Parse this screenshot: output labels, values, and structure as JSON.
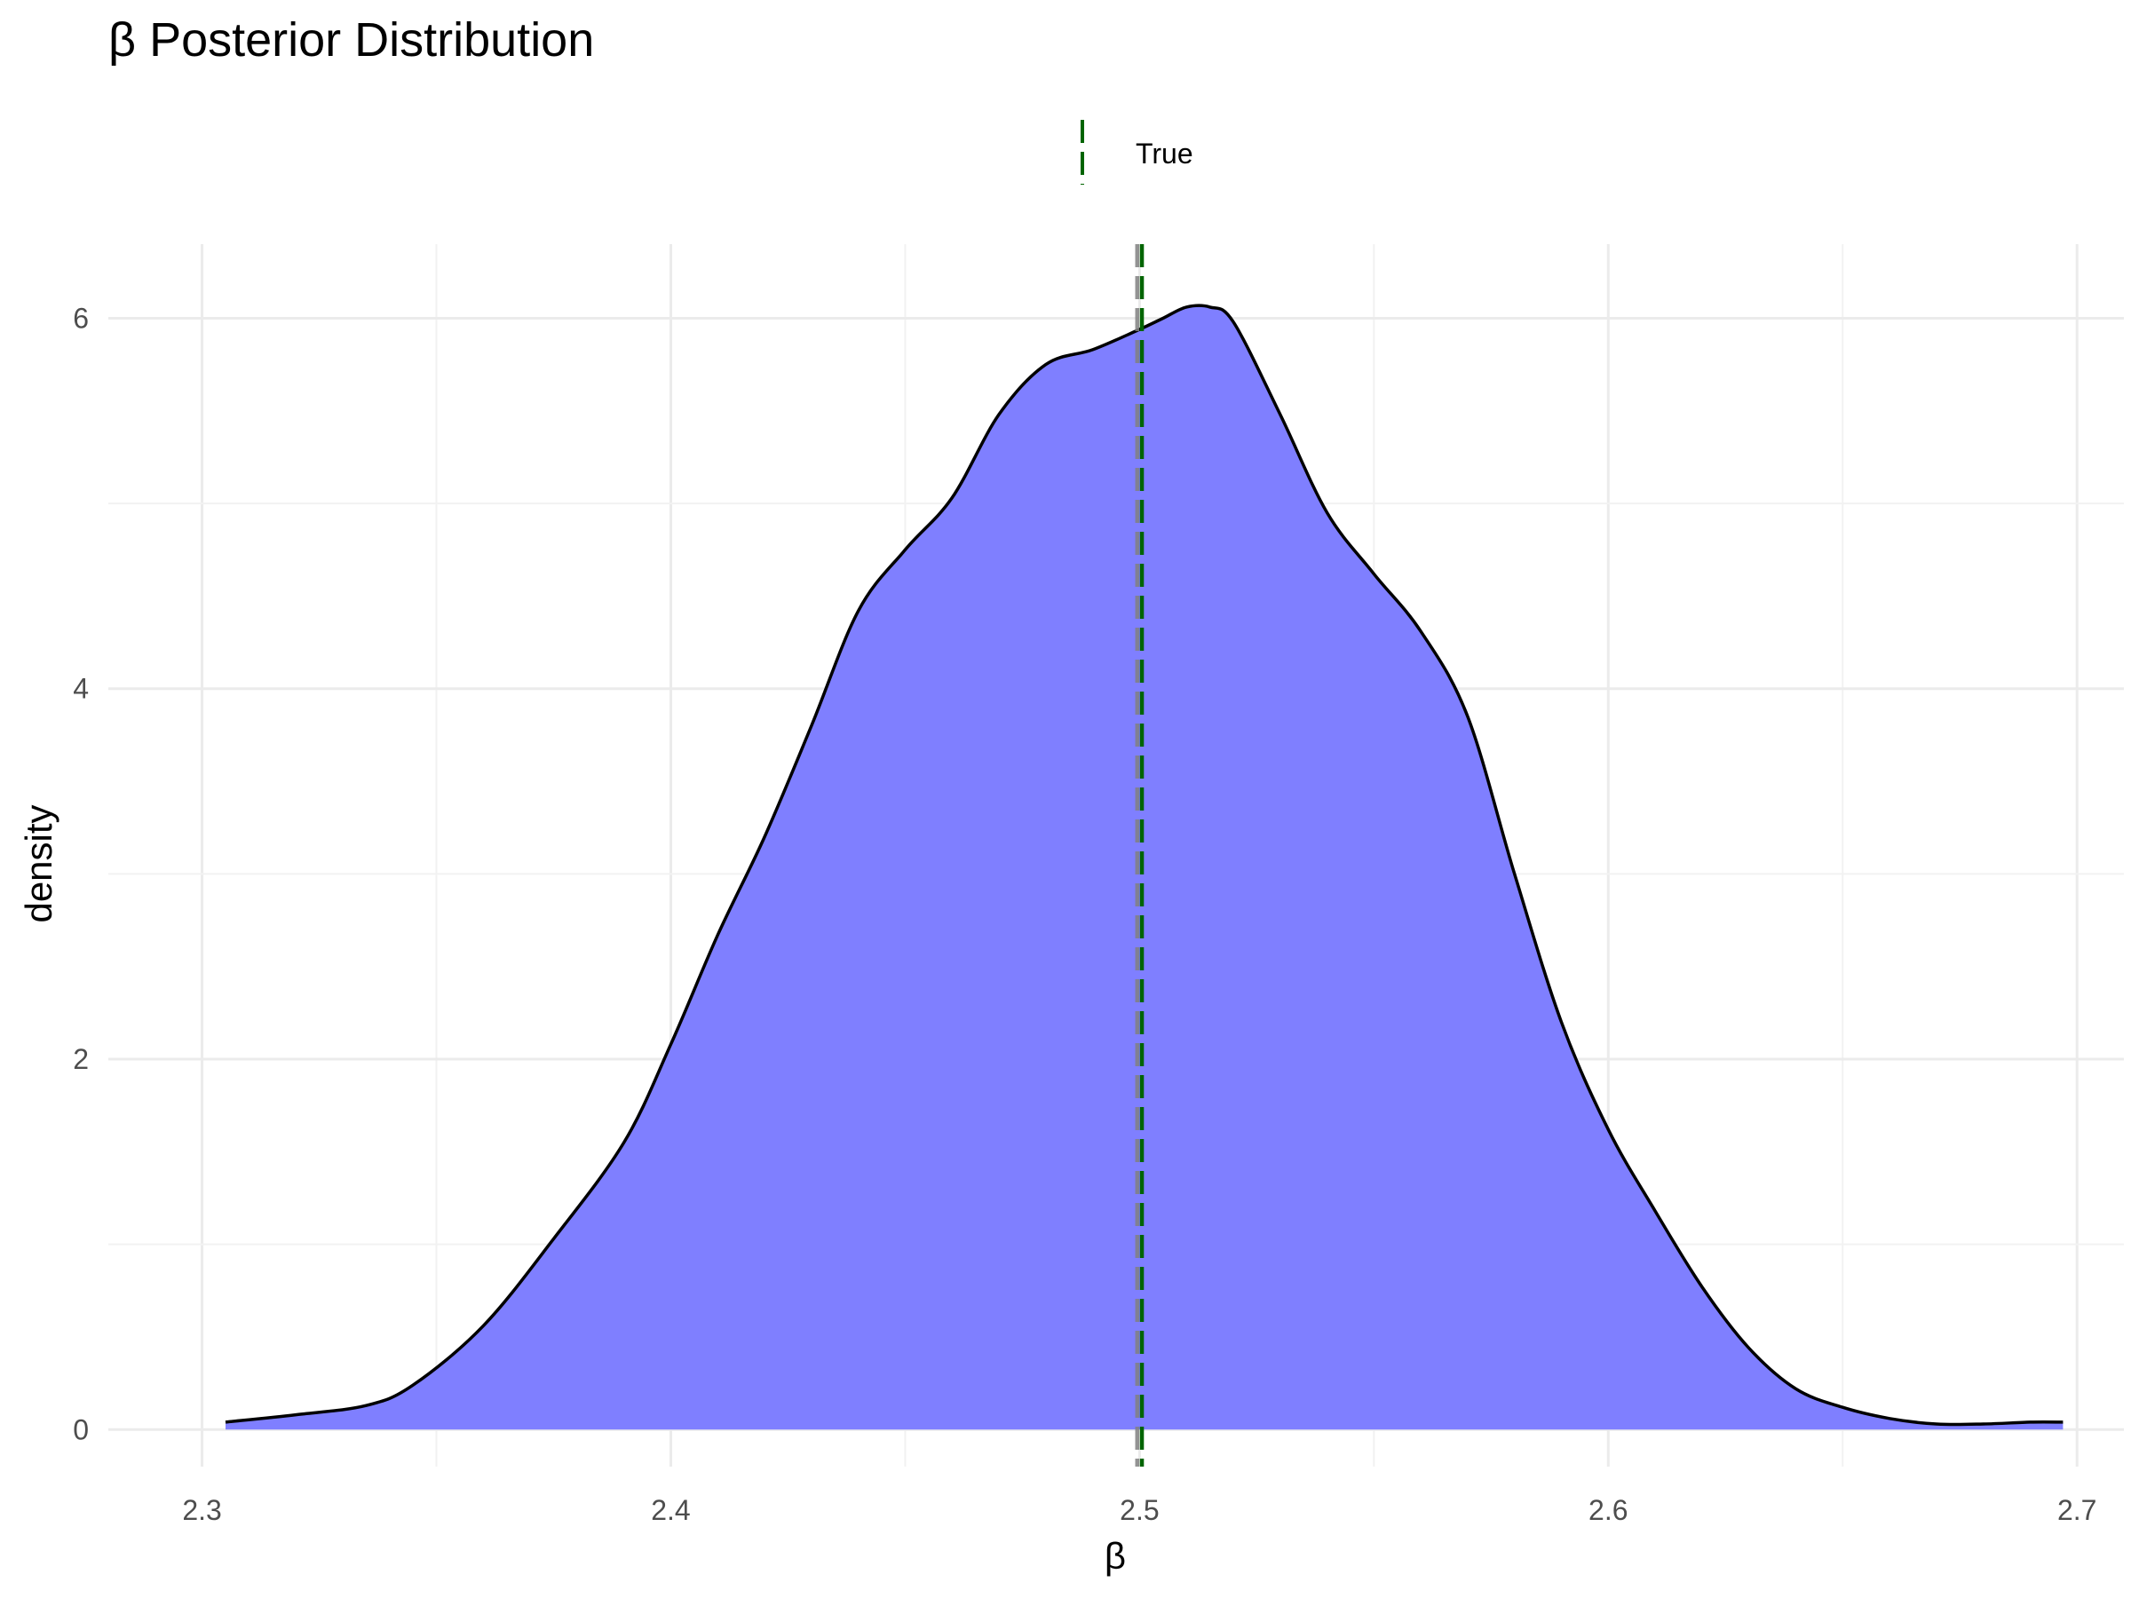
{
  "chart_data": {
    "type": "area",
    "title": "β Posterior Distribution",
    "xlabel": "β",
    "ylabel": "density",
    "xlim": [
      2.28,
      2.71
    ],
    "ylim": [
      -0.2,
      6.4
    ],
    "x_ticks": [
      2.3,
      2.4,
      2.5,
      2.6,
      2.7
    ],
    "x_tick_labels": [
      "2.3",
      "2.4",
      "2.5",
      "2.6",
      "2.7"
    ],
    "y_ticks": [
      0,
      2,
      4,
      6
    ],
    "y_tick_labels": [
      "0",
      "2",
      "4",
      "6"
    ],
    "grid": true,
    "legend": {
      "position": "top",
      "entries": [
        {
          "label": "True",
          "color": "#006400",
          "style": "dashed"
        }
      ]
    },
    "reference_lines": [
      {
        "x": 2.4995,
        "color": "#808080",
        "style": "dashed"
      },
      {
        "x": 2.5005,
        "color": "#006400",
        "style": "dashed",
        "legend": "True"
      }
    ],
    "series": [
      {
        "fill": "#7f7fff",
        "stroke": "#000000",
        "x": [
          2.305,
          2.32,
          2.335,
          2.345,
          2.36,
          2.375,
          2.39,
          2.4,
          2.41,
          2.42,
          2.43,
          2.44,
          2.45,
          2.46,
          2.47,
          2.48,
          2.49,
          2.5,
          2.505,
          2.51,
          2.515,
          2.52,
          2.53,
          2.54,
          2.55,
          2.56,
          2.57,
          2.58,
          2.59,
          2.6,
          2.61,
          2.62,
          2.63,
          2.64,
          2.65,
          2.66,
          2.67,
          2.68,
          2.69,
          2.697
        ],
        "y": [
          0.04,
          0.08,
          0.13,
          0.24,
          0.56,
          1.03,
          1.55,
          2.08,
          2.67,
          3.2,
          3.8,
          4.42,
          4.75,
          5.03,
          5.48,
          5.75,
          5.83,
          5.94,
          6.0,
          6.06,
          6.06,
          5.98,
          5.48,
          4.95,
          4.62,
          4.31,
          3.85,
          3.0,
          2.2,
          1.62,
          1.18,
          0.77,
          0.44,
          0.22,
          0.12,
          0.06,
          0.03,
          0.03,
          0.04,
          0.04
        ]
      }
    ]
  }
}
